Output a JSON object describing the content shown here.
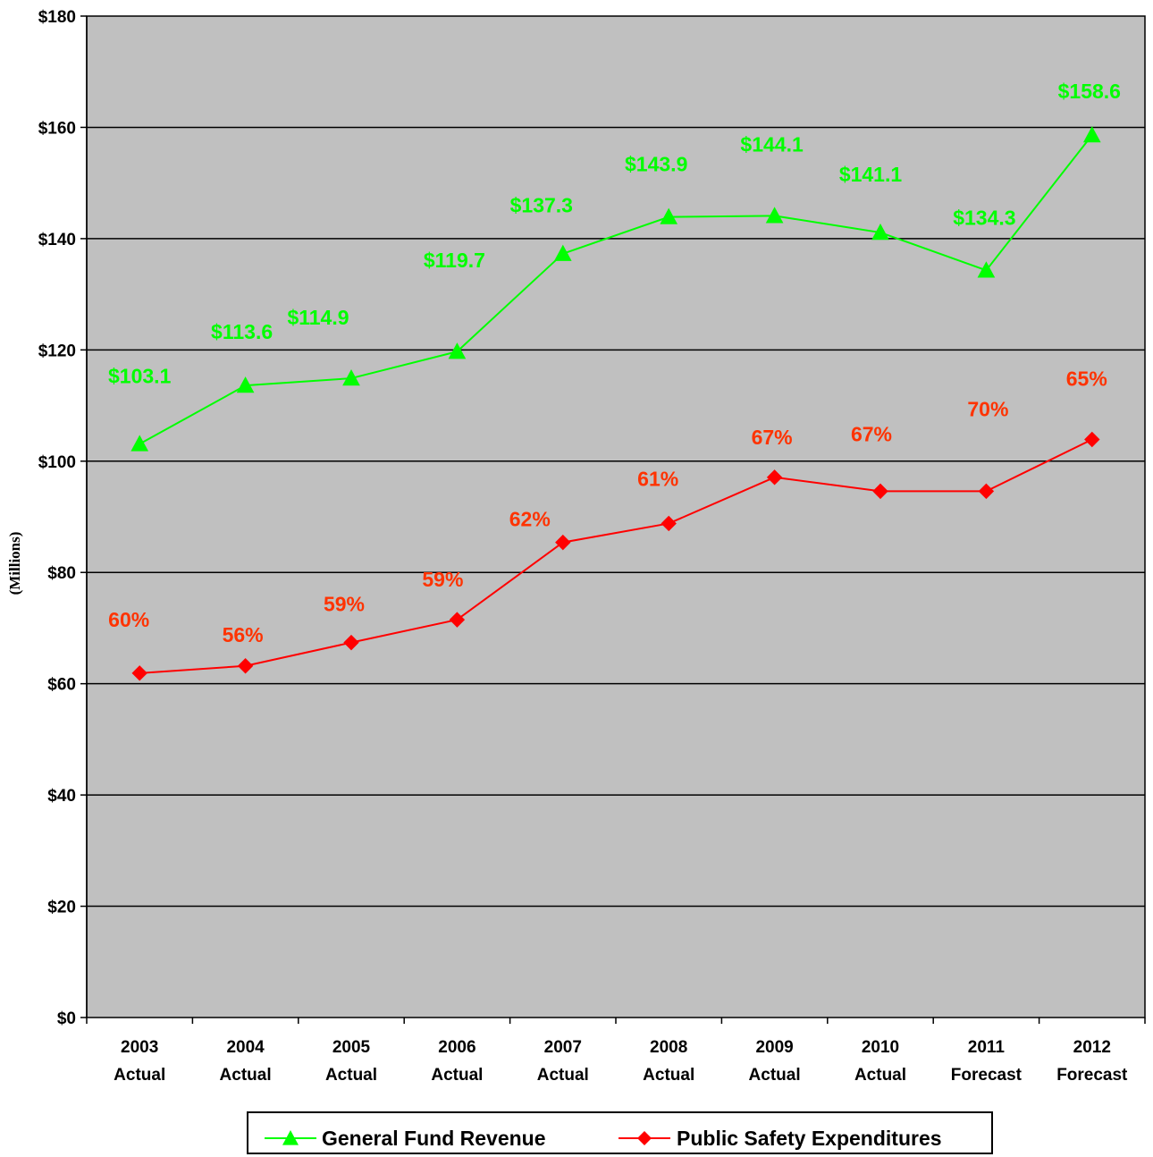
{
  "chart_data": {
    "type": "line",
    "ylabel": "(Millions)",
    "xlabel": "",
    "ylim": [
      0,
      180
    ],
    "y_ticks": [
      "$0",
      "$20",
      "$40",
      "$60",
      "$80",
      "$100",
      "$120",
      "$140",
      "$160",
      "$180"
    ],
    "y_tick_values": [
      0,
      20,
      40,
      60,
      80,
      100,
      120,
      140,
      160,
      180
    ],
    "categories": [
      [
        "2003",
        "Actual"
      ],
      [
        "2004",
        "Actual"
      ],
      [
        "2005",
        "Actual"
      ],
      [
        "2006",
        "Actual"
      ],
      [
        "2007",
        "Actual"
      ],
      [
        "2008",
        "Actual"
      ],
      [
        "2009",
        "Actual"
      ],
      [
        "2010",
        "Actual"
      ],
      [
        "2011",
        "Forecast"
      ],
      [
        "2012",
        "Forecast"
      ]
    ],
    "grid": true,
    "background": "#c0c0c0",
    "legend_position": "bottom",
    "series": [
      {
        "name": "General Fund Revenue",
        "color": "#00ff00",
        "marker": "triangle",
        "values": [
          103.1,
          113.6,
          114.9,
          119.7,
          137.3,
          143.9,
          144.1,
          141.1,
          134.3,
          158.6
        ],
        "labels": [
          "$103.1",
          "$113.6",
          "$114.9",
          "$119.7",
          "$137.3",
          "$143.9",
          "$144.1",
          "$141.1",
          "$134.3",
          "$158.6"
        ]
      },
      {
        "name": "Public Safety Expenditures",
        "color": "#ff0000",
        "label_color": "#ff3300",
        "marker": "diamond",
        "values": [
          61.9,
          63.2,
          67.4,
          71.5,
          85.4,
          88.8,
          97.1,
          94.6,
          94.6,
          103.9
        ],
        "labels": [
          "60%",
          "56%",
          "59%",
          "59%",
          "62%",
          "61%",
          "67%",
          "67%",
          "70%",
          "65%"
        ]
      }
    ]
  }
}
